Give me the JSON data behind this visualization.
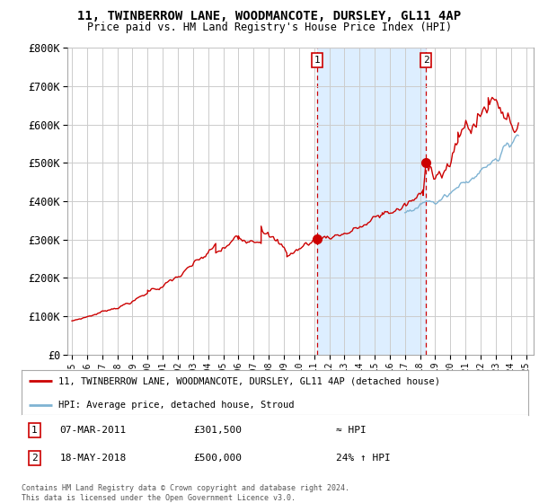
{
  "title": "11, TWINBERROW LANE, WOODMANCOTE, DURSLEY, GL11 4AP",
  "subtitle": "Price paid vs. HM Land Registry's House Price Index (HPI)",
  "legend_line1": "11, TWINBERROW LANE, WOODMANCOTE, DURSLEY, GL11 4AP (detached house)",
  "legend_line2": "HPI: Average price, detached house, Stroud",
  "annotation1_date": "07-MAR-2011",
  "annotation1_price": "£301,500",
  "annotation1_hpi": "≈ HPI",
  "annotation2_date": "18-MAY-2018",
  "annotation2_price": "£500,000",
  "annotation2_hpi": "24% ↑ HPI",
  "footer": "Contains HM Land Registry data © Crown copyright and database right 2024.\nThis data is licensed under the Open Government Licence v3.0.",
  "red_color": "#cc0000",
  "blue_color": "#7fb3d3",
  "shading_color": "#ddeeff",
  "background_color": "#ffffff",
  "grid_color": "#cccccc",
  "ylim": [
    0,
    800000
  ],
  "yticks": [
    0,
    100000,
    200000,
    300000,
    400000,
    500000,
    600000,
    700000,
    800000
  ],
  "ytick_labels": [
    "£0",
    "£100K",
    "£200K",
    "£300K",
    "£400K",
    "£500K",
    "£600K",
    "£700K",
    "£800K"
  ],
  "sale1_year": 2011.18,
  "sale1_value": 301500,
  "sale2_year": 2018.38,
  "sale2_value": 500000,
  "shade_start": 2011.18,
  "shade_end": 2018.38,
  "xmin": 1994.7,
  "xmax": 2025.5
}
